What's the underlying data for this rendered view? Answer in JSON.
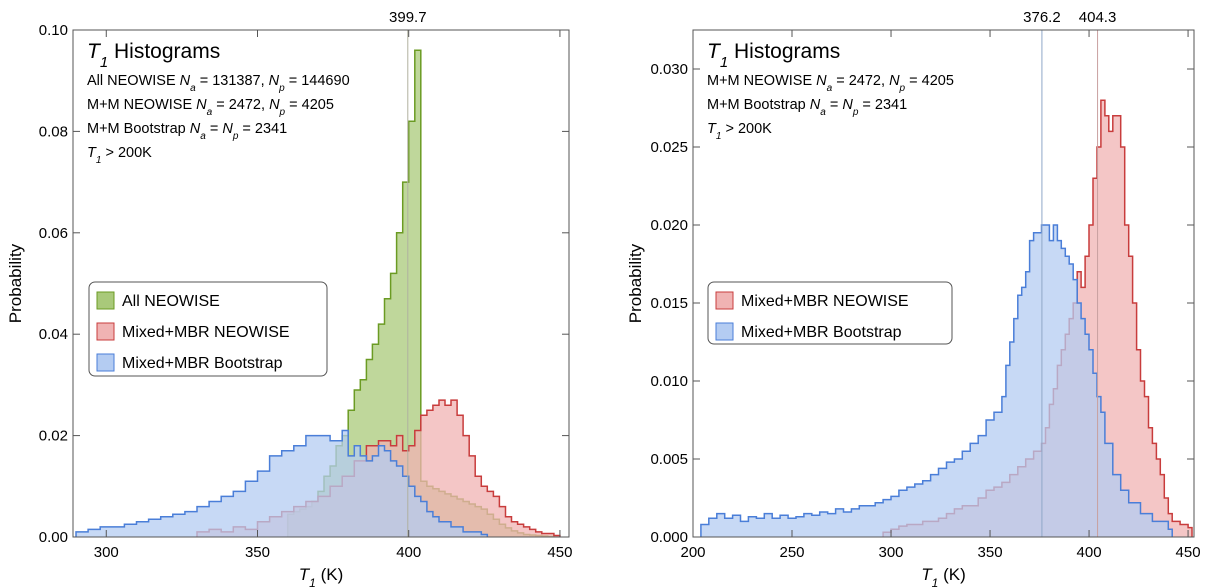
{
  "charts": [
    {
      "title_var": "T",
      "title_sub": "1",
      "title_rest": " Histograms",
      "info_lines": [
        {
          "parts": [
            [
              "All NEOWISE ",
              ""
            ],
            [
              "N",
              "i"
            ],
            [
              "a",
              "sub"
            ],
            [
              " = 131387, ",
              ""
            ],
            [
              "N",
              "i"
            ],
            [
              "p",
              "sub"
            ],
            [
              " = 144690",
              ""
            ]
          ]
        },
        {
          "parts": [
            [
              "M+M NEOWISE ",
              ""
            ],
            [
              "N",
              "i"
            ],
            [
              "a",
              "sub"
            ],
            [
              " = 2472, ",
              ""
            ],
            [
              "N",
              "i"
            ],
            [
              "p",
              "sub"
            ],
            [
              " = 4205",
              ""
            ]
          ]
        },
        {
          "parts": [
            [
              "M+M Bootstrap ",
              ""
            ],
            [
              "N",
              "i"
            ],
            [
              "a",
              "sub"
            ],
            [
              " = ",
              ""
            ],
            [
              "N",
              "i"
            ],
            [
              "p",
              "sub"
            ],
            [
              " = 2341",
              ""
            ]
          ]
        },
        {
          "parts": [
            [
              "T",
              "i"
            ],
            [
              "1",
              "sub"
            ],
            [
              " > 200K",
              ""
            ]
          ]
        }
      ],
      "peak_labels": [
        "399.7"
      ],
      "legend": [
        "All NEOWISE",
        "Mixed+MBR NEOWISE",
        "Mixed+MBR Bootstrap"
      ]
    },
    {
      "title_var": "T",
      "title_sub": "1",
      "title_rest": " Histograms",
      "info_lines": [
        {
          "parts": [
            [
              "M+M NEOWISE ",
              ""
            ],
            [
              "N",
              "i"
            ],
            [
              "a",
              "sub"
            ],
            [
              " = 2472, ",
              ""
            ],
            [
              "N",
              "i"
            ],
            [
              "p",
              "sub"
            ],
            [
              " = 4205",
              ""
            ]
          ]
        },
        {
          "parts": [
            [
              "M+M Bootstrap ",
              ""
            ],
            [
              "N",
              "i"
            ],
            [
              "a",
              "sub"
            ],
            [
              " = ",
              ""
            ],
            [
              "N",
              "i"
            ],
            [
              "p",
              "sub"
            ],
            [
              " = 2341",
              ""
            ]
          ]
        },
        {
          "parts": [
            [
              "T",
              "i"
            ],
            [
              "1",
              "sub"
            ],
            [
              " > 200K",
              ""
            ]
          ]
        }
      ],
      "peak_labels": [
        "376.2",
        "404.3"
      ],
      "legend": [
        "Mixed+MBR NEOWISE",
        "Mixed+MBR Bootstrap"
      ]
    }
  ],
  "colors": {
    "all_neowise": "#6b9b23",
    "all_neowise_fill": "#a9c97a",
    "mixed_neowise": "#c83c3c",
    "mixed_neowise_fill": "#f0b3b3",
    "bootstrap": "#4a7ed8",
    "bootstrap_fill": "#b4ccf2"
  },
  "chart_data": [
    {
      "type": "histogram",
      "xlabel": "T1 (K)",
      "ylabel": "Probability",
      "xlim": [
        289,
        453
      ],
      "ylim": [
        0,
        0.1
      ],
      "xticks": [
        300,
        350,
        400,
        450
      ],
      "yticks": [
        0.0,
        0.02,
        0.04,
        0.06,
        0.08,
        0.1
      ],
      "ytick_labels": [
        "0.00",
        "0.02",
        "0.04",
        "0.06",
        "0.08",
        "0.10"
      ],
      "vlines": [
        399.7
      ],
      "series": [
        {
          "name": "All NEOWISE",
          "bin_width": 2,
          "x": [
            360,
            362,
            364,
            366,
            368,
            370,
            372,
            374,
            376,
            378,
            380,
            382,
            384,
            386,
            388,
            390,
            392,
            394,
            396,
            398,
            400,
            402,
            404,
            406,
            408,
            410,
            412,
            414,
            416,
            418,
            420,
            422,
            424,
            426,
            428,
            430,
            432,
            434,
            436,
            438,
            440,
            442,
            444,
            446
          ],
          "values": [
            0.0045,
            0.005,
            0.0055,
            0.006,
            0.007,
            0.009,
            0.012,
            0.014,
            0.018,
            0.02,
            0.025,
            0.029,
            0.031,
            0.035,
            0.038,
            0.042,
            0.047,
            0.052,
            0.06,
            0.07,
            0.082,
            0.096,
            0.011,
            0.01,
            0.0095,
            0.009,
            0.0085,
            0.008,
            0.0075,
            0.007,
            0.0065,
            0.006,
            0.0055,
            0.0045,
            0.0035,
            0.0025,
            0.0018,
            0.0012,
            0.0008,
            0.0005,
            0.0004,
            0.0003,
            0.0002,
            0.0001
          ]
        },
        {
          "name": "Mixed+MBR NEOWISE",
          "bin_width": 2,
          "x": [
            330,
            334,
            338,
            342,
            346,
            350,
            354,
            358,
            362,
            366,
            370,
            374,
            378,
            382,
            386,
            390,
            394,
            396,
            398,
            400,
            402,
            404,
            406,
            408,
            410,
            412,
            414,
            416,
            418,
            420,
            422,
            424,
            426,
            428,
            430,
            432,
            434,
            436,
            438,
            440,
            442,
            444,
            448
          ],
          "values": [
            0.001,
            0.0015,
            0.001,
            0.002,
            0.0015,
            0.003,
            0.004,
            0.005,
            0.006,
            0.007,
            0.008,
            0.01,
            0.012,
            0.015,
            0.018,
            0.019,
            0.018,
            0.02,
            0.017,
            0.018,
            0.021,
            0.024,
            0.025,
            0.026,
            0.027,
            0.026,
            0.027,
            0.024,
            0.02,
            0.016,
            0.012,
            0.01,
            0.009,
            0.008,
            0.006,
            0.004,
            0.003,
            0.0025,
            0.002,
            0.0015,
            0.001,
            0.0007,
            0.0003
          ]
        },
        {
          "name": "Mixed+MBR Bootstrap",
          "bin_width": 2,
          "x": [
            290,
            294,
            298,
            302,
            306,
            310,
            314,
            318,
            322,
            326,
            330,
            334,
            338,
            342,
            346,
            350,
            354,
            358,
            362,
            366,
            370,
            374,
            378,
            380,
            382,
            384,
            386,
            388,
            390,
            392,
            394,
            396,
            398,
            400,
            402,
            404,
            406,
            408,
            410,
            414,
            418,
            424
          ],
          "values": [
            0.001,
            0.0015,
            0.002,
            0.002,
            0.0025,
            0.003,
            0.0035,
            0.004,
            0.0045,
            0.005,
            0.006,
            0.007,
            0.008,
            0.009,
            0.011,
            0.013,
            0.016,
            0.017,
            0.018,
            0.02,
            0.02,
            0.019,
            0.021,
            0.016,
            0.018,
            0.016,
            0.015,
            0.016,
            0.018,
            0.017,
            0.015,
            0.014,
            0.012,
            0.01,
            0.008,
            0.007,
            0.005,
            0.004,
            0.003,
            0.002,
            0.001,
            0.0005
          ]
        }
      ]
    },
    {
      "type": "histogram",
      "xlabel": "T1 (K)",
      "ylabel": "Probability",
      "xlim": [
        200,
        453
      ],
      "ylim": [
        0,
        0.0325
      ],
      "xticks": [
        200,
        250,
        300,
        350,
        400,
        450
      ],
      "yticks": [
        0.0,
        0.005,
        0.01,
        0.015,
        0.02,
        0.025,
        0.03
      ],
      "ytick_labels": [
        "0.000",
        "0.005",
        "0.010",
        "0.015",
        "0.020",
        "0.025",
        "0.030"
      ],
      "vlines": [
        376.2,
        404.3
      ],
      "series": [
        {
          "name": "Mixed+MBR NEOWISE",
          "bin_width": 2,
          "x": [
            296,
            300,
            304,
            308,
            312,
            316,
            320,
            324,
            328,
            332,
            336,
            340,
            344,
            348,
            352,
            356,
            360,
            364,
            368,
            372,
            376,
            378,
            380,
            382,
            384,
            386,
            388,
            390,
            392,
            394,
            396,
            398,
            400,
            402,
            404,
            406,
            408,
            410,
            412,
            414,
            416,
            418,
            420,
            422,
            424,
            426,
            428,
            430,
            432,
            434,
            436,
            438,
            440,
            442,
            446,
            450
          ],
          "values": [
            0.0003,
            0.0005,
            0.0007,
            0.0008,
            0.0008,
            0.001,
            0.001,
            0.0012,
            0.0015,
            0.0018,
            0.002,
            0.002,
            0.0025,
            0.003,
            0.0032,
            0.0035,
            0.004,
            0.0045,
            0.005,
            0.0055,
            0.006,
            0.007,
            0.0085,
            0.0095,
            0.011,
            0.012,
            0.013,
            0.014,
            0.015,
            0.017,
            0.016,
            0.018,
            0.02,
            0.023,
            0.025,
            0.028,
            0.027,
            0.026,
            0.027,
            0.027,
            0.025,
            0.02,
            0.018,
            0.015,
            0.012,
            0.01,
            0.009,
            0.007,
            0.006,
            0.005,
            0.004,
            0.0025,
            0.0015,
            0.001,
            0.0008,
            0.0006
          ]
        },
        {
          "name": "Mixed+MBR Bootstrap",
          "bin_width": 2,
          "x": [
            204,
            208,
            212,
            216,
            220,
            224,
            228,
            232,
            236,
            240,
            244,
            248,
            252,
            256,
            260,
            264,
            268,
            272,
            276,
            280,
            284,
            288,
            292,
            296,
            300,
            304,
            308,
            312,
            316,
            320,
            324,
            328,
            332,
            336,
            340,
            344,
            348,
            352,
            356,
            358,
            360,
            362,
            364,
            366,
            368,
            370,
            372,
            374,
            376,
            378,
            380,
            382,
            384,
            386,
            388,
            390,
            392,
            394,
            396,
            398,
            400,
            402,
            404,
            406,
            408,
            412,
            416,
            420,
            426,
            432,
            440
          ],
          "values": [
            0.0008,
            0.0012,
            0.0015,
            0.0012,
            0.0014,
            0.001,
            0.0013,
            0.0012,
            0.0015,
            0.0012,
            0.0014,
            0.0012,
            0.0013,
            0.0015,
            0.0014,
            0.0016,
            0.0015,
            0.0018,
            0.0016,
            0.0018,
            0.002,
            0.002,
            0.0022,
            0.0024,
            0.0026,
            0.003,
            0.0032,
            0.0034,
            0.0036,
            0.004,
            0.0044,
            0.0048,
            0.005,
            0.0055,
            0.006,
            0.0065,
            0.0075,
            0.008,
            0.009,
            0.011,
            0.0125,
            0.014,
            0.0155,
            0.016,
            0.017,
            0.019,
            0.0195,
            0.0195,
            0.02,
            0.02,
            0.019,
            0.02,
            0.019,
            0.0185,
            0.018,
            0.0175,
            0.0165,
            0.015,
            0.014,
            0.013,
            0.012,
            0.0105,
            0.009,
            0.008,
            0.006,
            0.004,
            0.003,
            0.0022,
            0.0015,
            0.001,
            0.0005
          ]
        }
      ]
    }
  ]
}
